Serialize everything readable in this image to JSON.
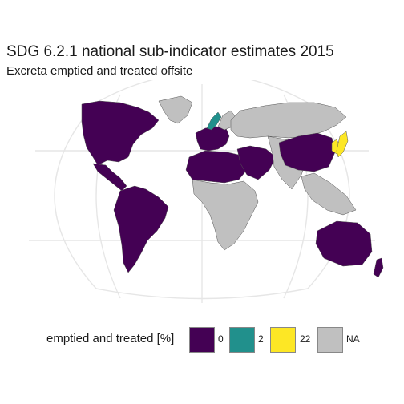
{
  "title": "SDG 6.2.1 national sub-indicator estimates 2015",
  "subtitle": "Excreta emptied and treated offsite",
  "legend": {
    "title": "emptied and treated [%]",
    "items": [
      {
        "label": "0",
        "color": "#440154"
      },
      {
        "label": "2",
        "color": "#21908C"
      },
      {
        "label": "22",
        "color": "#FDE725"
      },
      {
        "label": "NA",
        "color": "#C0C0C0"
      }
    ]
  },
  "colors": {
    "graticule": "#e6e6e6",
    "border": "#555555",
    "background": "#ffffff"
  },
  "map_data": {
    "type": "choropleth",
    "projection": "robinson",
    "regions": [
      {
        "region": "North America",
        "category": "0"
      },
      {
        "region": "Greenland",
        "category": "NA"
      },
      {
        "region": "Central America and Caribbean",
        "category": "0"
      },
      {
        "region": "South America",
        "category": "0"
      },
      {
        "region": "Western Europe",
        "category": "0"
      },
      {
        "region": "Norway",
        "category": "2"
      },
      {
        "region": "Sweden / Finland",
        "category": "NA"
      },
      {
        "region": "Russia",
        "category": "NA"
      },
      {
        "region": "North Africa",
        "category": "0"
      },
      {
        "region": "Sub-Saharan Africa",
        "category": "NA"
      },
      {
        "region": "Middle East",
        "category": "0"
      },
      {
        "region": "Central / South Asia",
        "category": "NA"
      },
      {
        "region": "China",
        "category": "0"
      },
      {
        "region": "Korea",
        "category": "22"
      },
      {
        "region": "Japan",
        "category": "22"
      },
      {
        "region": "Southeast Asia",
        "category": "NA"
      },
      {
        "region": "Australia",
        "category": "0"
      },
      {
        "region": "New Zealand",
        "category": "0"
      }
    ]
  }
}
